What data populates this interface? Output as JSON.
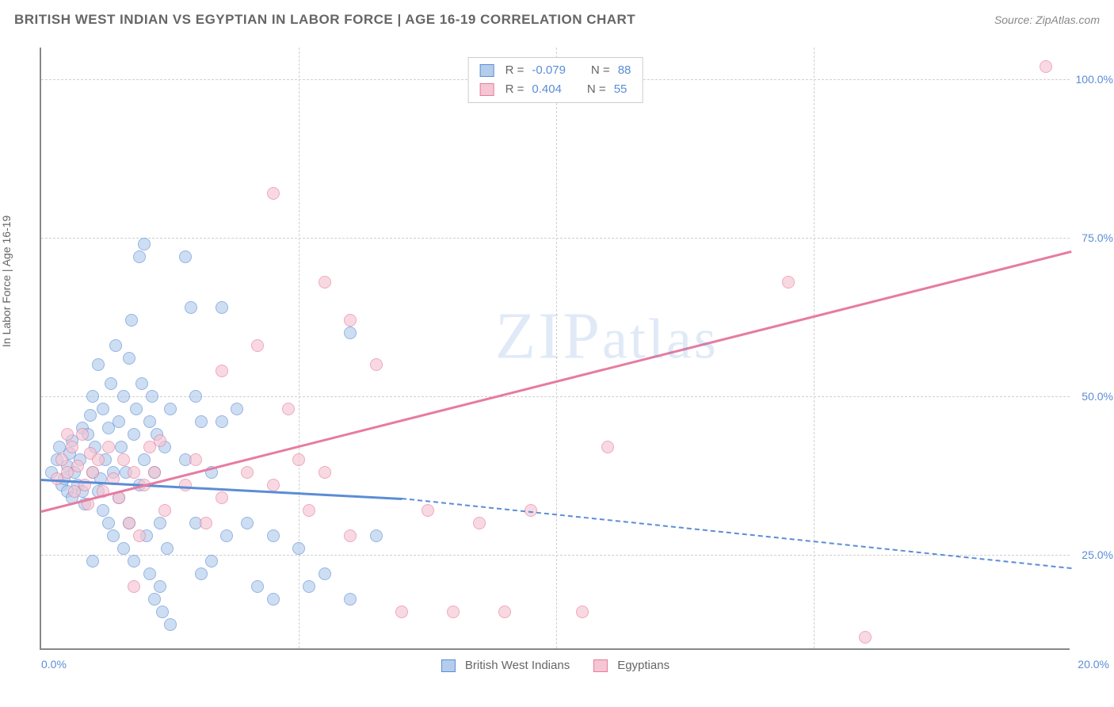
{
  "title": "BRITISH WEST INDIAN VS EGYPTIAN IN LABOR FORCE | AGE 16-19 CORRELATION CHART",
  "source": "Source: ZipAtlas.com",
  "ylabel": "In Labor Force | Age 16-19",
  "watermark": "ZIPatlas",
  "chart": {
    "type": "scatter",
    "xlim": [
      0,
      20
    ],
    "ylim": [
      10,
      105
    ],
    "xtick_labels": [
      "0.0%",
      "20.0%"
    ],
    "ytick_values": [
      25,
      50,
      75,
      100
    ],
    "ytick_labels": [
      "25.0%",
      "50.0%",
      "75.0%",
      "100.0%"
    ],
    "grid_color": "#d0d0d0",
    "axis_color": "#888888",
    "background": "#ffffff",
    "marker_radius": 8,
    "marker_opacity": 0.65,
    "series": [
      {
        "name": "British West Indians",
        "fill": "#b5cdec",
        "stroke": "#5b8dd6",
        "R": "-0.079",
        "N": "88",
        "trend": {
          "x1": 0,
          "y1": 37,
          "x2_solid": 7,
          "y2_solid": 34,
          "x2_dash": 20,
          "y2_dash": 23
        },
        "points": [
          [
            0.2,
            38
          ],
          [
            0.3,
            40
          ],
          [
            0.35,
            42
          ],
          [
            0.4,
            36
          ],
          [
            0.45,
            37
          ],
          [
            0.5,
            39
          ],
          [
            0.5,
            35
          ],
          [
            0.55,
            41
          ],
          [
            0.6,
            43
          ],
          [
            0.6,
            34
          ],
          [
            0.65,
            38
          ],
          [
            0.7,
            36
          ],
          [
            0.75,
            40
          ],
          [
            0.8,
            35
          ],
          [
            0.8,
            45
          ],
          [
            0.85,
            33
          ],
          [
            0.9,
            44
          ],
          [
            0.95,
            47
          ],
          [
            1.0,
            50
          ],
          [
            1.0,
            38
          ],
          [
            1.05,
            42
          ],
          [
            1.1,
            35
          ],
          [
            1.1,
            55
          ],
          [
            1.15,
            37
          ],
          [
            1.2,
            48
          ],
          [
            1.2,
            32
          ],
          [
            1.25,
            40
          ],
          [
            1.3,
            45
          ],
          [
            1.3,
            30
          ],
          [
            1.35,
            52
          ],
          [
            1.4,
            38
          ],
          [
            1.4,
            28
          ],
          [
            1.45,
            58
          ],
          [
            1.5,
            46
          ],
          [
            1.5,
            34
          ],
          [
            1.55,
            42
          ],
          [
            1.6,
            50
          ],
          [
            1.6,
            26
          ],
          [
            1.65,
            38
          ],
          [
            1.7,
            56
          ],
          [
            1.7,
            30
          ],
          [
            1.75,
            62
          ],
          [
            1.8,
            44
          ],
          [
            1.8,
            24
          ],
          [
            1.85,
            48
          ],
          [
            1.9,
            72
          ],
          [
            1.9,
            36
          ],
          [
            1.95,
            52
          ],
          [
            2.0,
            74
          ],
          [
            2.0,
            40
          ],
          [
            2.05,
            28
          ],
          [
            2.1,
            46
          ],
          [
            2.1,
            22
          ],
          [
            2.15,
            50
          ],
          [
            2.2,
            38
          ],
          [
            2.2,
            18
          ],
          [
            2.25,
            44
          ],
          [
            2.3,
            30
          ],
          [
            2.3,
            20
          ],
          [
            2.35,
            16
          ],
          [
            2.4,
            42
          ],
          [
            2.45,
            26
          ],
          [
            2.5,
            48
          ],
          [
            2.5,
            14
          ],
          [
            2.8,
            72
          ],
          [
            2.8,
            40
          ],
          [
            2.9,
            64
          ],
          [
            3.0,
            50
          ],
          [
            3.0,
            30
          ],
          [
            3.1,
            46
          ],
          [
            3.1,
            22
          ],
          [
            3.3,
            38
          ],
          [
            3.3,
            24
          ],
          [
            3.5,
            64
          ],
          [
            3.5,
            46
          ],
          [
            3.6,
            28
          ],
          [
            3.8,
            48
          ],
          [
            4.0,
            30
          ],
          [
            4.2,
            20
          ],
          [
            4.5,
            28
          ],
          [
            4.5,
            18
          ],
          [
            5.0,
            26
          ],
          [
            5.2,
            20
          ],
          [
            5.5,
            22
          ],
          [
            6.0,
            60
          ],
          [
            6.0,
            18
          ],
          [
            6.5,
            28
          ],
          [
            1.0,
            24
          ]
        ]
      },
      {
        "name": "Egyptians",
        "fill": "#f5c6d3",
        "stroke": "#e77ba0",
        "R": "0.404",
        "N": "55",
        "trend": {
          "x1": 0,
          "y1": 32,
          "x2_solid": 20,
          "y2_solid": 73
        },
        "points": [
          [
            0.3,
            37
          ],
          [
            0.4,
            40
          ],
          [
            0.5,
            38
          ],
          [
            0.6,
            42
          ],
          [
            0.65,
            35
          ],
          [
            0.7,
            39
          ],
          [
            0.8,
            44
          ],
          [
            0.85,
            36
          ],
          [
            0.9,
            33
          ],
          [
            0.95,
            41
          ],
          [
            1.0,
            38
          ],
          [
            1.1,
            40
          ],
          [
            1.2,
            35
          ],
          [
            1.3,
            42
          ],
          [
            1.4,
            37
          ],
          [
            1.5,
            34
          ],
          [
            1.6,
            40
          ],
          [
            1.7,
            30
          ],
          [
            1.8,
            38
          ],
          [
            1.8,
            20
          ],
          [
            1.9,
            28
          ],
          [
            2.0,
            36
          ],
          [
            2.1,
            42
          ],
          [
            2.2,
            38
          ],
          [
            2.3,
            43
          ],
          [
            2.4,
            32
          ],
          [
            2.8,
            36
          ],
          [
            3.0,
            40
          ],
          [
            3.2,
            30
          ],
          [
            3.5,
            54
          ],
          [
            3.5,
            34
          ],
          [
            4.0,
            38
          ],
          [
            4.2,
            58
          ],
          [
            4.5,
            82
          ],
          [
            4.5,
            36
          ],
          [
            4.8,
            48
          ],
          [
            5.0,
            40
          ],
          [
            5.2,
            32
          ],
          [
            5.5,
            68
          ],
          [
            5.5,
            38
          ],
          [
            6.0,
            62
          ],
          [
            6.0,
            28
          ],
          [
            6.5,
            55
          ],
          [
            7.0,
            16
          ],
          [
            7.5,
            32
          ],
          [
            8.0,
            16
          ],
          [
            8.5,
            30
          ],
          [
            9.0,
            16
          ],
          [
            9.5,
            32
          ],
          [
            10.5,
            16
          ],
          [
            11.0,
            42
          ],
          [
            14.5,
            68
          ],
          [
            16.0,
            12
          ],
          [
            19.5,
            102
          ],
          [
            0.5,
            44
          ]
        ]
      }
    ]
  },
  "legend_bottom": [
    {
      "label": "British West Indians",
      "series": 0
    },
    {
      "label": "Egyptians",
      "series": 1
    }
  ]
}
